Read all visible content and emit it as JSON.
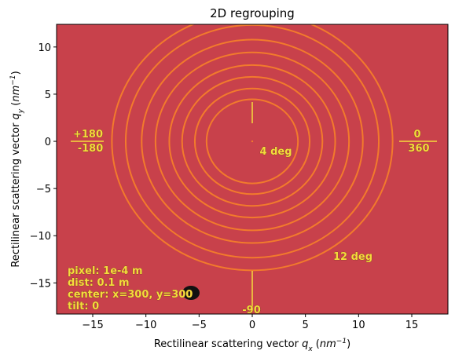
{
  "chart_data": {
    "type": "rings",
    "title": "2D regrouping",
    "xlabel": [
      "Rectilinear scattering vector ",
      "q",
      "x",
      " (",
      "nm",
      "−1",
      ")"
    ],
    "ylabel": [
      "Rectilinear scattering vector ",
      "q",
      "y",
      " (",
      "nm",
      "−1",
      ")"
    ],
    "xlim": [
      -18.4,
      18.4
    ],
    "ylim": [
      -18.3,
      12.4
    ],
    "xticks": [
      {
        "value": -15,
        "label": "−15"
      },
      {
        "value": -10,
        "label": "−10"
      },
      {
        "value": -5,
        "label": "−5"
      },
      0,
      5,
      10,
      15
    ],
    "yticks": [
      {
        "value": -15,
        "label": "−15"
      },
      {
        "value": -10,
        "label": "−10"
      },
      {
        "value": -5,
        "label": "−5"
      },
      0,
      5,
      10
    ],
    "background": "#c8414b",
    "color": "#f27a2c",
    "ring_aspect": 0.92,
    "values": [
      13.2,
      11.9,
      10.4,
      9.1,
      7.8,
      6.6,
      5.4,
      4.3
    ],
    "annotations": [
      "+180",
      "-180",
      "0",
      "360",
      "4 deg",
      "12 deg",
      "-90"
    ],
    "info": [
      "pixel: 1e-4 m",
      "dist: 0.1 m",
      "center: x=300, y=300",
      "tilt: 0"
    ]
  }
}
